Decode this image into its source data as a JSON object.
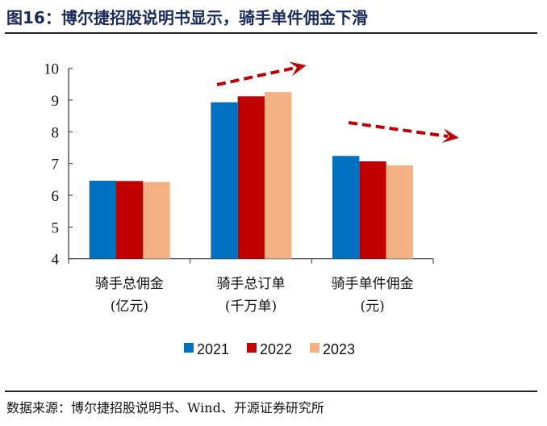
{
  "title": "图16：博尔捷招股说明书显示，骑手单件佣金下滑",
  "source": "数据来源：博尔捷招股说明书、Wind、开源证券研究所",
  "colors": {
    "2021": "#0070c0",
    "2022": "#c00000",
    "2023": "#f4b183",
    "arrow": "#c00000"
  },
  "chart_data": {
    "type": "bar",
    "categories": [
      [
        "骑手总佣金",
        "(亿元)"
      ],
      [
        "骑手总订单",
        "(千万单)"
      ],
      [
        "骑手单件佣金",
        "(元)"
      ]
    ],
    "series": [
      {
        "name": "2021",
        "values": [
          6.46,
          8.93,
          7.24
        ]
      },
      {
        "name": "2022",
        "values": [
          6.45,
          9.12,
          7.07
        ]
      },
      {
        "name": "2023",
        "values": [
          6.42,
          9.25,
          6.94
        ]
      }
    ],
    "ylim": [
      4,
      10
    ],
    "yticks": [
      "4",
      "5",
      "6",
      "7",
      "8",
      "9",
      "10"
    ],
    "grid": false,
    "legend": "bottom",
    "annotations": [
      "up-trend arrow over 骑手总订单",
      "down-trend arrow over 骑手单件佣金"
    ]
  }
}
